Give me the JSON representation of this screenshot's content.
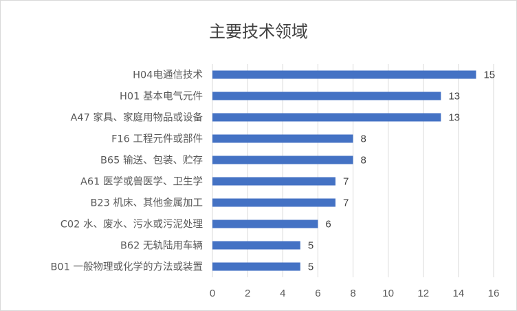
{
  "chart_data": {
    "type": "bar",
    "orientation": "horizontal",
    "title": "主要技术领域",
    "categories": [
      "H04电通信技术",
      "H01 基本电气元件",
      "A47 家具、家庭用物品或设备",
      "F16 工程元件或部件",
      "B65 输送、包装、贮存",
      "A61 医学或兽医学、卫生学",
      "B23 机床、其他金属加工",
      "C02 水、废水、污水或污泥处理",
      "B62 无轨陆用车辆",
      "B01 一般物理或化学的方法或装置"
    ],
    "values": [
      15,
      13,
      13,
      8,
      8,
      7,
      7,
      6,
      5,
      5
    ],
    "xlim": [
      0,
      16
    ],
    "xticks": [
      "0",
      "2",
      "4",
      "6",
      "8",
      "10",
      "12",
      "14",
      "16"
    ],
    "grid": "vertical",
    "bar_color": "#4472c4",
    "data_labels": true
  }
}
